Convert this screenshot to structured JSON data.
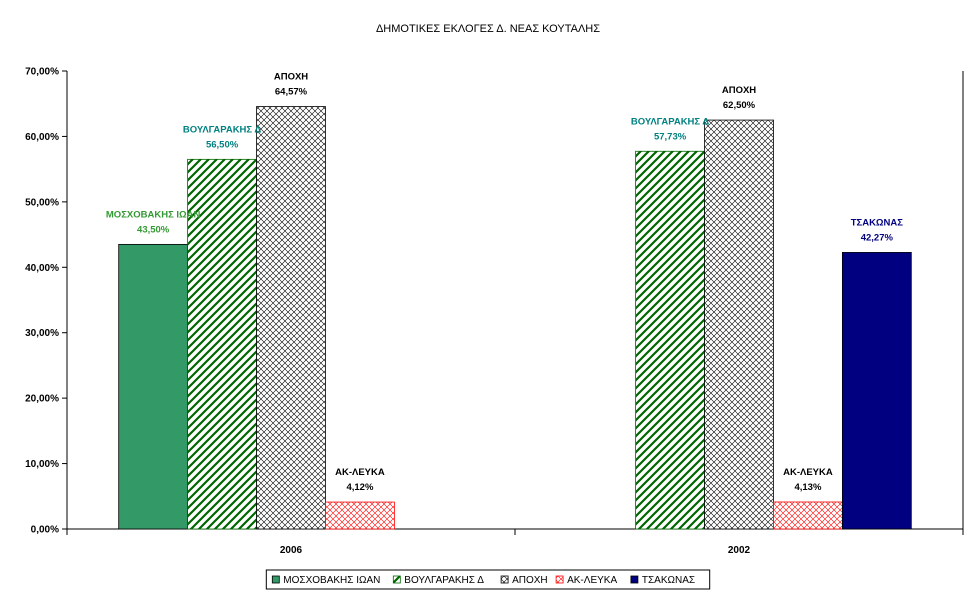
{
  "chart_data": {
    "type": "bar",
    "title": "ΔΗΜΟΤΙΚΕΣ ΕΚΛΟΓΕΣ Δ. ΝΕΑΣ ΚΟΥΤΑΛΗΣ",
    "categories": [
      "2006",
      "2002"
    ],
    "ylim": [
      0,
      70
    ],
    "yticks": [
      0,
      10,
      20,
      30,
      40,
      50,
      60,
      70
    ],
    "ytick_labels": [
      "0,00%",
      "10,00%",
      "20,00%",
      "30,00%",
      "40,00%",
      "50,00%",
      "60,00%",
      "70,00%"
    ],
    "grid": false,
    "legend_position": "bottom",
    "series": [
      {
        "name": "ΜΟΣΧΟΒΑΚΗΣ ΙΩΑΝ",
        "values": [
          43.5,
          null
        ],
        "labels": [
          "43,50%",
          null
        ],
        "color": "#339966",
        "label_color": "#339933",
        "pattern": "solid"
      },
      {
        "name": "ΒΟΥΛΓΑΡΑΚΗΣ Δ",
        "values": [
          56.5,
          57.73
        ],
        "labels": [
          "56,50%",
          "57,73%"
        ],
        "color": "#006600",
        "label_color": "#008080",
        "pattern": "diagonal"
      },
      {
        "name": "ΑΠΟΧΗ",
        "values": [
          64.57,
          62.5
        ],
        "labels": [
          "64,57%",
          "62,50%"
        ],
        "color": "#000000",
        "label_color": "#000000",
        "pattern": "crosshatch"
      },
      {
        "name": "ΑΚ-ΛΕΥΚΑ",
        "values": [
          4.12,
          4.13
        ],
        "labels": [
          "4,12%",
          "4,13%"
        ],
        "color": "#FF0000",
        "label_color": "#000000",
        "pattern": "lightcross"
      },
      {
        "name": "ΤΣΑΚΩΝΑΣ",
        "values": [
          null,
          42.27
        ],
        "labels": [
          null,
          "42,27%"
        ],
        "color": "#000080",
        "label_color": "#000080",
        "pattern": "solid"
      }
    ]
  }
}
